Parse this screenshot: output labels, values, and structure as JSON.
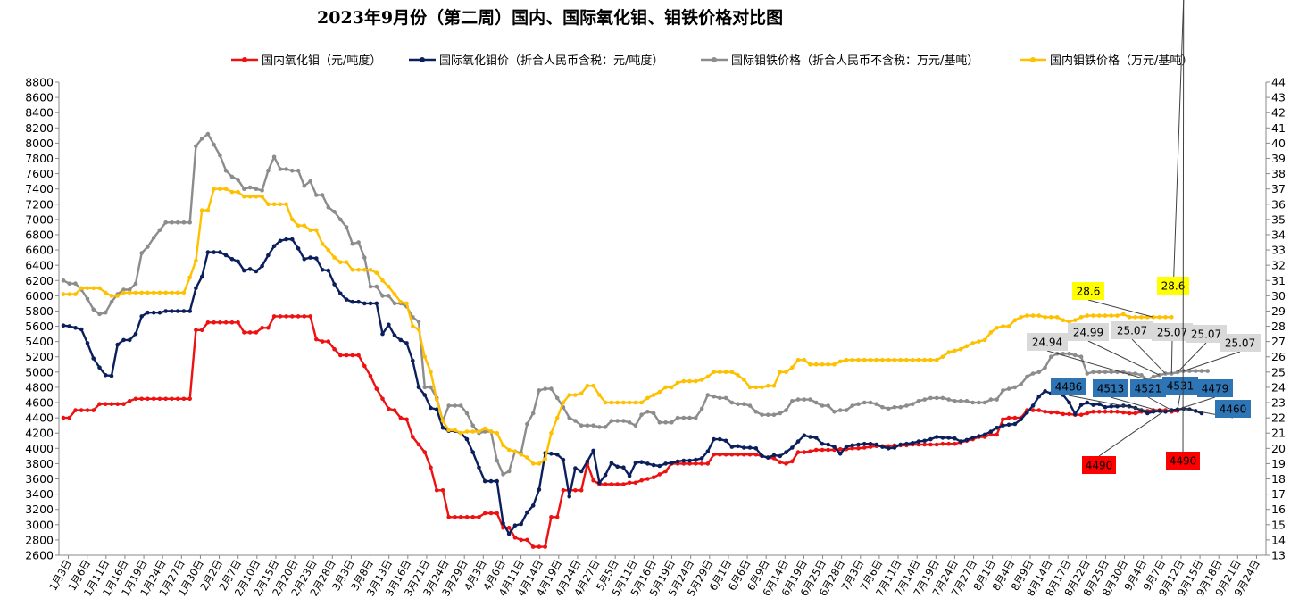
{
  "chart_data": {
    "type": "line",
    "title": "2023年9月份（第二周）国内、国际氧化钼、钼铁价格对比图",
    "left_axis": {
      "ylim": [
        2600,
        8800
      ],
      "step": 200
    },
    "right_axis": {
      "ylim": [
        13,
        44
      ],
      "step": 1
    },
    "x_tick_labels": [
      "1月3日",
      "1月6日",
      "1月11日",
      "1月16日",
      "1月19日",
      "1月24日",
      "1月27日",
      "1月30日",
      "2月2日",
      "2月7日",
      "2月10日",
      "2月15日",
      "2月20日",
      "2月23日",
      "2月28日",
      "3月3日",
      "3月8日",
      "3月13日",
      "3月16日",
      "3月21日",
      "3月24日",
      "3月29日",
      "4月3日",
      "4月6日",
      "4月11日",
      "4月14日",
      "4月19日",
      "4月24日",
      "4月27日",
      "5月5日",
      "5月11日",
      "5月16日",
      "5月19日",
      "5月24日",
      "5月29日",
      "6月1日",
      "6月6日",
      "6月9日",
      "6月14日",
      "6月19日",
      "6月25日",
      "6月28日",
      "7月3日",
      "7月6日",
      "7月11日",
      "7月14日",
      "7月19日",
      "7月24日",
      "7月27日",
      "8月1日",
      "8月4日",
      "8月9日",
      "8月14日",
      "8月17日",
      "8月22日",
      "8月25日",
      "8月30日",
      "9月4日",
      "9月7日",
      "9月12日",
      "9月15日",
      "9月18日",
      "9月21日",
      "9月24日"
    ],
    "legend_position": "top",
    "grid": false,
    "series": [
      {
        "name": "国内氧化钼（元/吨度）",
        "axis": "left",
        "color": "#ee1111",
        "values": [
          4400,
          4400,
          4500,
          4500,
          4500,
          4500,
          4580,
          4580,
          4580,
          4580,
          4580,
          4620,
          4650,
          4650,
          4650,
          4650,
          4650,
          4650,
          4650,
          4650,
          4650,
          4650,
          5550,
          5550,
          5650,
          5650,
          5650,
          5650,
          5650,
          5650,
          5520,
          5520,
          5520,
          5580,
          5580,
          5730,
          5730,
          5730,
          5730,
          5730,
          5730,
          5730,
          5430,
          5400,
          5400,
          5300,
          5220,
          5220,
          5220,
          5220,
          5080,
          4950,
          4780,
          4650,
          4520,
          4500,
          4400,
          4380,
          4150,
          4050,
          3950,
          3750,
          3450,
          3450,
          3100,
          3100,
          3100,
          3100,
          3100,
          3100,
          3150,
          3150,
          3150,
          2960,
          2960,
          2830,
          2800,
          2800,
          2710,
          2710,
          2710,
          3100,
          3100,
          3450,
          3450,
          3450,
          3450,
          3800,
          3580,
          3530,
          3530,
          3530,
          3530,
          3530,
          3550,
          3550,
          3580,
          3600,
          3620,
          3660,
          3700,
          3800,
          3800,
          3800,
          3800,
          3800,
          3800,
          3800,
          3920,
          3920,
          3920,
          3920,
          3920,
          3920,
          3920,
          3920,
          3900,
          3880,
          3870,
          3820,
          3800,
          3830,
          3950,
          3950,
          3960,
          3980,
          3980,
          3980,
          3980,
          3990,
          3990,
          4000,
          4000,
          4010,
          4020,
          4030,
          4030,
          4030,
          4040,
          4040,
          4040,
          4050,
          4050,
          4050,
          4050,
          4050,
          4060,
          4060,
          4060,
          4080,
          4100,
          4120,
          4150,
          4150,
          4180,
          4180,
          4380,
          4400,
          4400,
          4400,
          4500,
          4500,
          4500,
          4480,
          4470,
          4470,
          4450,
          4450,
          4440,
          4440,
          4460,
          4480,
          4480,
          4480,
          4480,
          4480,
          4470,
          4460,
          4460,
          4480,
          4490,
          4500,
          4500,
          4500,
          4480,
          4490
        ]
      },
      {
        "name": "国际氧化钼价（折合人民币含税：元/吨度）",
        "axis": "left",
        "color": "#0a1f5c",
        "values": [
          5610,
          5600,
          5580,
          5560,
          5380,
          5180,
          5060,
          4960,
          4950,
          5360,
          5420,
          5420,
          5500,
          5730,
          5780,
          5780,
          5780,
          5800,
          5800,
          5800,
          5800,
          5800,
          6100,
          6250,
          6570,
          6570,
          6570,
          6530,
          6480,
          6450,
          6330,
          6350,
          6320,
          6390,
          6530,
          6650,
          6720,
          6740,
          6740,
          6620,
          6480,
          6500,
          6490,
          6340,
          6330,
          6150,
          6030,
          5950,
          5920,
          5920,
          5900,
          5900,
          5900,
          5500,
          5620,
          5480,
          5420,
          5380,
          5150,
          4800,
          4700,
          4530,
          4510,
          4270,
          4230,
          4230,
          4200,
          4120,
          3950,
          3750,
          3570,
          3570,
          3570,
          3020,
          2880,
          2990,
          3010,
          3160,
          3250,
          3460,
          3940,
          3930,
          3920,
          3850,
          3370,
          3740,
          3700,
          3830,
          3970,
          3550,
          3650,
          3810,
          3760,
          3750,
          3640,
          3810,
          3820,
          3800,
          3780,
          3770,
          3800,
          3810,
          3830,
          3840,
          3840,
          3850,
          3870,
          3960,
          4120,
          4120,
          4100,
          4020,
          4030,
          4010,
          4010,
          4000,
          3900,
          3880,
          3910,
          3900,
          3950,
          4010,
          4090,
          4170,
          4150,
          4140,
          4060,
          4050,
          4020,
          3930,
          4020,
          4040,
          4050,
          4060,
          4060,
          4050,
          4020,
          4000,
          4010,
          4050,
          4060,
          4070,
          4090,
          4100,
          4120,
          4150,
          4140,
          4140,
          4130,
          4090,
          4110,
          4140,
          4160,
          4180,
          4220,
          4270,
          4300,
          4310,
          4320,
          4380,
          4470,
          4560,
          4680,
          4750,
          4720,
          4720,
          4700,
          4600,
          4450,
          4570,
          4600,
          4570,
          4580,
          4540,
          4550,
          4550,
          4560,
          4550,
          4530,
          4500,
          4460,
          4480,
          4490,
          4480,
          4500,
          4510,
          4520,
          4510,
          4490,
          4460
        ]
      },
      {
        "name": "国际钼铁价格（折合人民币不含税：万元/基吨）",
        "axis": "right",
        "color": "#8c8c8c",
        "values": [
          31.0,
          30.8,
          30.8,
          30.4,
          29.8,
          29.1,
          28.8,
          28.9,
          29.6,
          30.1,
          30.4,
          30.4,
          30.8,
          32.8,
          33.2,
          33.8,
          34.3,
          34.8,
          34.8,
          34.8,
          34.8,
          34.8,
          39.8,
          40.3,
          40.6,
          39.9,
          39.2,
          38.2,
          37.8,
          37.6,
          37.0,
          37.1,
          37.0,
          36.9,
          38.2,
          39.1,
          38.3,
          38.3,
          38.2,
          38.2,
          37.2,
          37.5,
          36.6,
          36.6,
          35.8,
          35.5,
          35.0,
          34.5,
          33.4,
          33.5,
          32.5,
          30.6,
          30.6,
          30.0,
          30.0,
          29.5,
          29.5,
          29.3,
          28.6,
          28.3,
          24.0,
          24.0,
          23.3,
          21.8,
          22.8,
          22.8,
          22.8,
          22.3,
          21.5,
          21.0,
          21.1,
          21.1,
          19.2,
          18.3,
          18.5,
          19.8,
          19.7,
          21.6,
          22.3,
          23.8,
          23.9,
          23.9,
          23.3,
          22.7,
          22.0,
          21.8,
          21.5,
          21.5,
          21.5,
          21.4,
          21.4,
          21.8,
          21.8,
          21.8,
          21.7,
          21.5,
          22.2,
          22.4,
          22.3,
          21.7,
          21.7,
          21.7,
          22.0,
          22.0,
          22.0,
          22.0,
          22.6,
          23.5,
          23.4,
          23.3,
          23.3,
          23.0,
          22.9,
          22.9,
          22.8,
          22.4,
          22.2,
          22.2,
          22.2,
          22.3,
          22.5,
          23.1,
          23.2,
          23.2,
          23.2,
          23.0,
          22.8,
          22.8,
          22.4,
          22.5,
          22.5,
          22.8,
          22.9,
          23.0,
          23.0,
          22.9,
          22.7,
          22.6,
          22.7,
          22.7,
          22.8,
          22.9,
          23.1,
          23.2,
          23.3,
          23.3,
          23.3,
          23.2,
          23.1,
          23.1,
          23.1,
          23.0,
          23.0,
          23.0,
          23.2,
          23.2,
          23.8,
          23.9,
          24.0,
          24.2,
          24.7,
          24.9,
          25.0,
          25.3,
          26.0,
          26.2,
          26.2,
          26.2,
          26.1,
          26.0,
          24.9,
          25.0,
          25.0,
          25.0,
          25.0,
          25.0,
          25.0,
          24.9,
          24.9,
          24.8,
          24.5,
          24.7,
          24.8,
          24.9,
          24.9,
          24.99,
          25.07,
          25.07,
          25.07,
          25.07,
          25.07
        ]
      },
      {
        "name": "国内钼铁价格（万元/基吨）",
        "axis": "right",
        "color": "#ffc000",
        "values": [
          30.1,
          30.1,
          30.1,
          30.5,
          30.5,
          30.5,
          30.5,
          30.2,
          30.0,
          30.0,
          30.2,
          30.2,
          30.2,
          30.2,
          30.2,
          30.2,
          30.2,
          30.2,
          30.2,
          30.2,
          30.2,
          31.2,
          32.3,
          35.6,
          35.6,
          37.0,
          37.0,
          37.0,
          36.8,
          36.8,
          36.5,
          36.5,
          36.5,
          36.5,
          36.0,
          36.0,
          36.0,
          36.0,
          35.0,
          34.6,
          34.6,
          34.3,
          34.3,
          33.4,
          33.0,
          32.5,
          32.2,
          32.2,
          31.7,
          31.7,
          31.7,
          31.7,
          31.5,
          31.0,
          30.6,
          30.1,
          29.6,
          29.5,
          28.0,
          27.8,
          26.0,
          25.0,
          23.2,
          21.8,
          21.2,
          21.2,
          21.0,
          21.1,
          21.1,
          21.1,
          21.3,
          21.1,
          21.0,
          20.2,
          19.9,
          19.8,
          19.6,
          19.4,
          19.0,
          19.0,
          19.3,
          21.0,
          22.0,
          23.0,
          23.5,
          23.5,
          23.6,
          24.1,
          24.1,
          23.5,
          23.0,
          23.0,
          23.0,
          23.0,
          23.0,
          23.0,
          23.0,
          23.3,
          23.5,
          23.7,
          24.0,
          24.0,
          24.3,
          24.4,
          24.4,
          24.4,
          24.5,
          24.7,
          25.0,
          25.0,
          25.0,
          25.0,
          24.8,
          24.5,
          24.0,
          24.0,
          24.0,
          24.1,
          24.1,
          25.0,
          25.0,
          25.3,
          25.8,
          25.8,
          25.5,
          25.5,
          25.5,
          25.5,
          25.5,
          25.7,
          25.8,
          25.8,
          25.8,
          25.8,
          25.8,
          25.8,
          25.8,
          25.8,
          25.8,
          25.8,
          25.8,
          25.8,
          25.8,
          25.8,
          25.8,
          25.8,
          26.0,
          26.3,
          26.4,
          26.5,
          26.7,
          26.9,
          27.0,
          27.1,
          27.6,
          27.9,
          28.0,
          28.0,
          28.4,
          28.6,
          28.7,
          28.7,
          28.7,
          28.6,
          28.6,
          28.6,
          28.4,
          28.3,
          28.4,
          28.6,
          28.7,
          28.7,
          28.7,
          28.7,
          28.7,
          28.7,
          28.8,
          28.6,
          28.6,
          28.6,
          28.6,
          28.6,
          28.6,
          28.6,
          28.6
        ]
      }
    ],
    "annotations": [
      {
        "text": "28.6",
        "series": 3,
        "point": 181,
        "box": "yellow"
      },
      {
        "text": "28.6",
        "series": 3,
        "point": 186,
        "box": "yellow"
      },
      {
        "text": "24.94",
        "series": 2,
        "point": 180,
        "box": "grey"
      },
      {
        "text": "24.99",
        "series": 2,
        "point": 182,
        "box": "grey"
      },
      {
        "text": "25.07",
        "series": 2,
        "point": 183,
        "box": "grey"
      },
      {
        "text": "25.07",
        "series": 2,
        "point": 184,
        "box": "grey"
      },
      {
        "text": "25.07",
        "series": 2,
        "point": 185,
        "box": "grey"
      },
      {
        "text": "25.07",
        "series": 2,
        "point": 186,
        "box": "grey"
      },
      {
        "text": "4486",
        "series": 1,
        "point": 181,
        "box": "blue"
      },
      {
        "text": "4513",
        "series": 1,
        "point": 182,
        "box": "blue"
      },
      {
        "text": "4521",
        "series": 1,
        "point": 184,
        "box": "blue"
      },
      {
        "text": "4531",
        "series": 1,
        "point": 185,
        "box": "blue"
      },
      {
        "text": "4479",
        "series": 1,
        "point": 185,
        "box": "blue"
      },
      {
        "text": "4460",
        "series": 1,
        "point": 186,
        "box": "blue"
      },
      {
        "text": "4490",
        "series": 0,
        "point": 183,
        "box": "red"
      },
      {
        "text": "4490",
        "series": 0,
        "point": 186,
        "box": "red"
      }
    ]
  }
}
